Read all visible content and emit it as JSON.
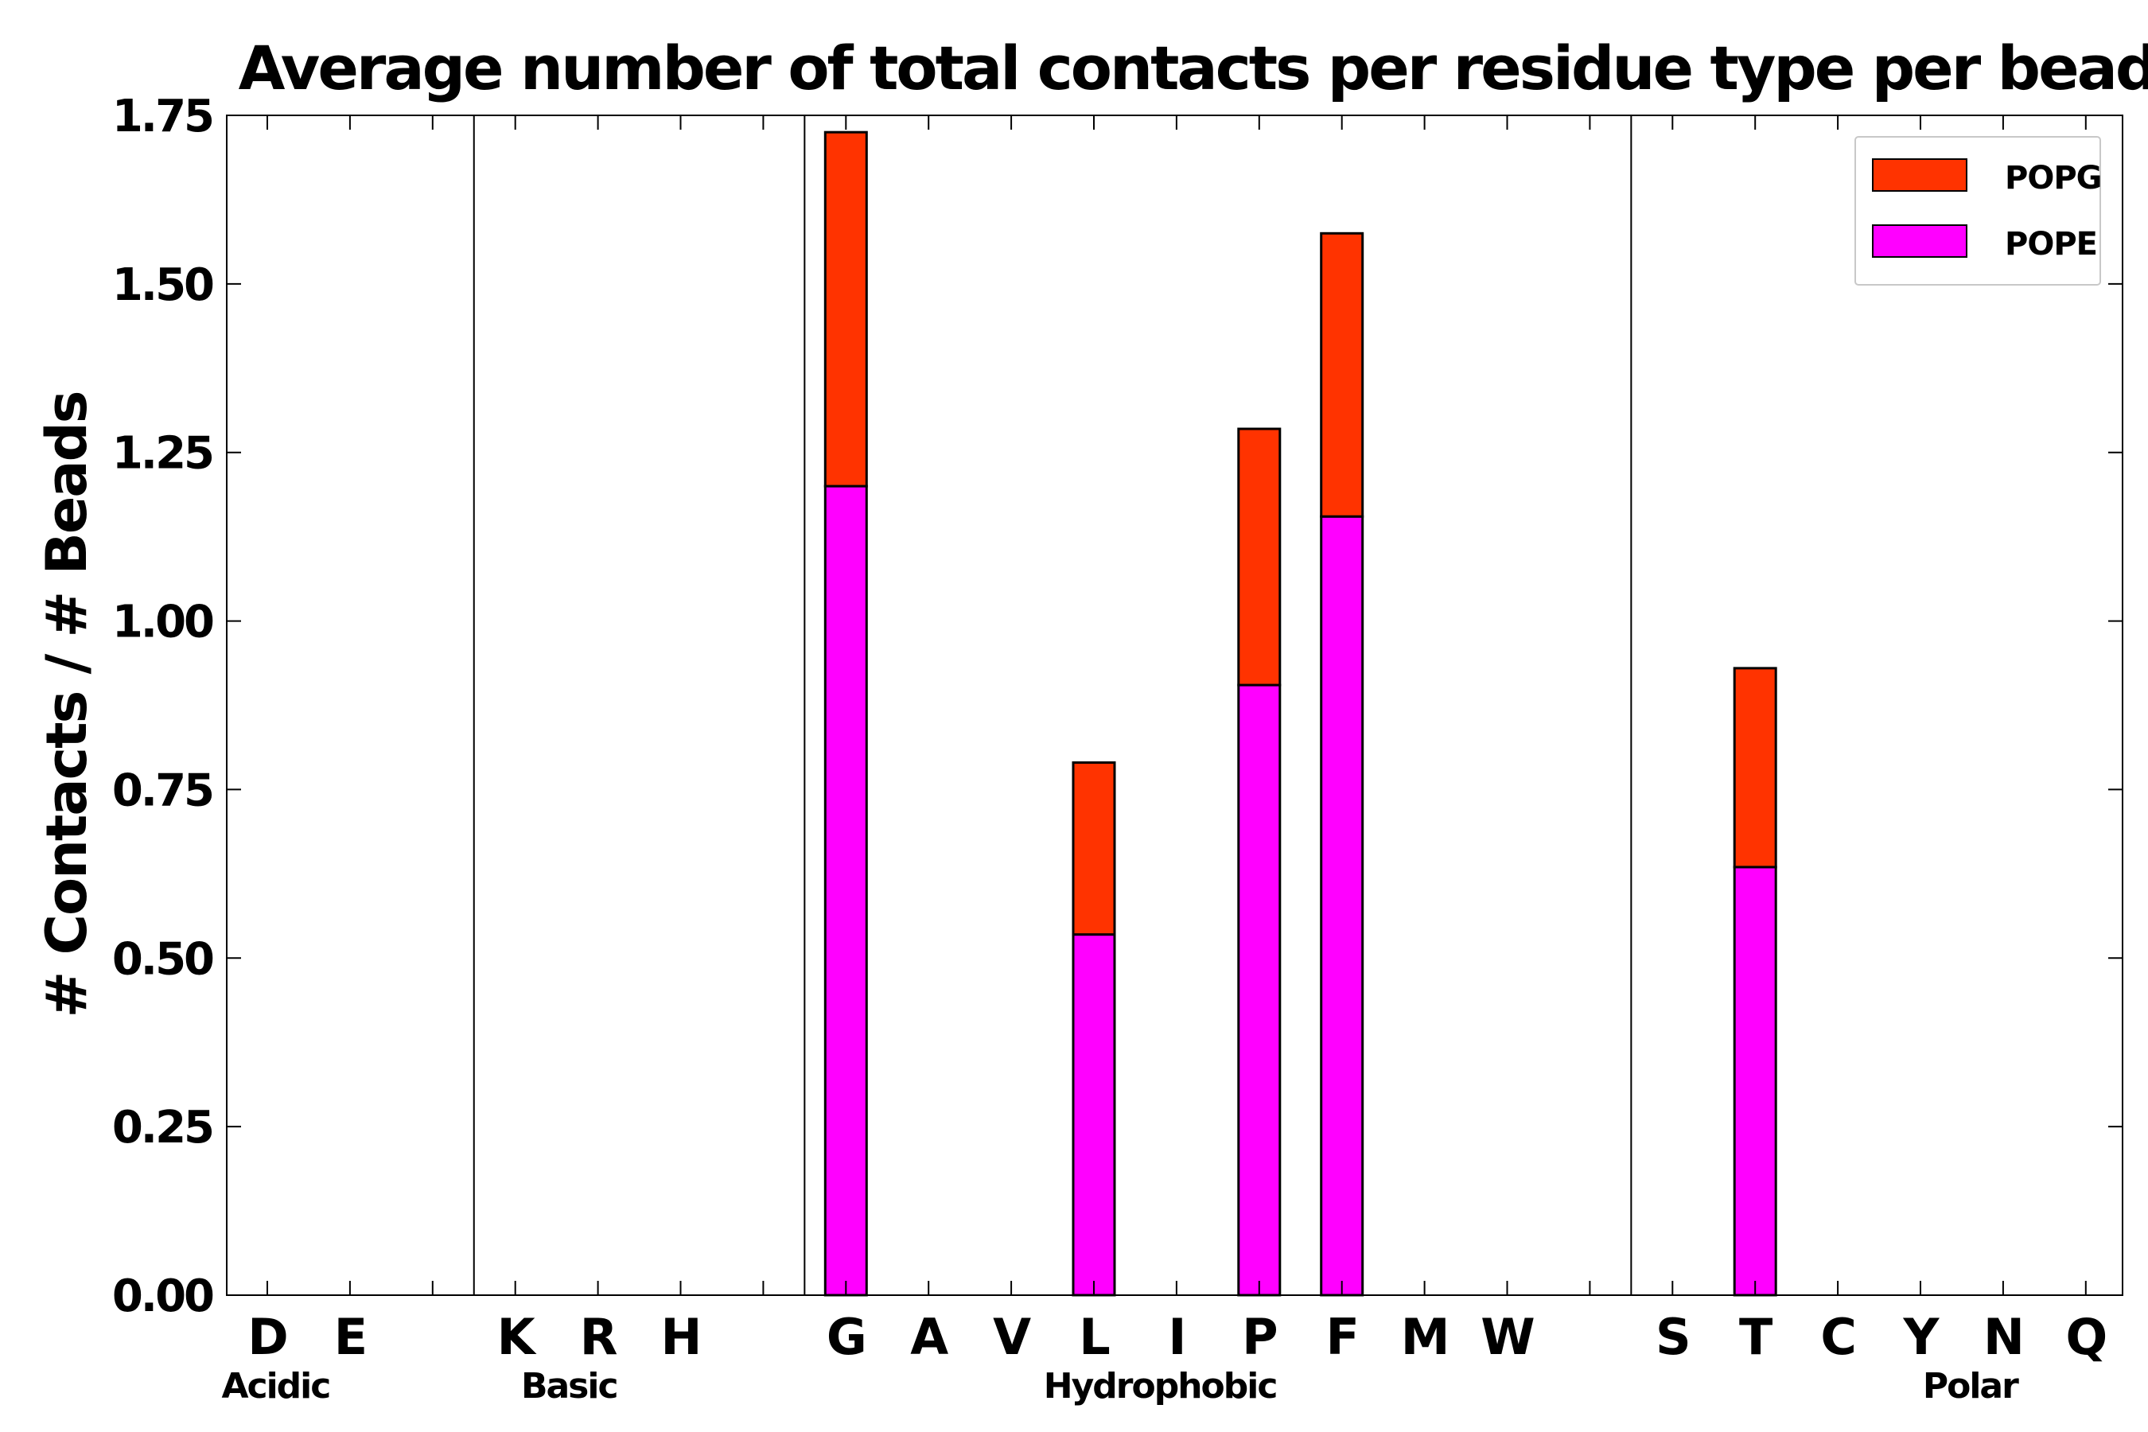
{
  "chart_data": {
    "type": "bar",
    "stacked": true,
    "title": "Average number of total contacts per residue type per bead",
    "xlabel": "",
    "ylabel": "# Contacts / # Beads",
    "ylim": [
      0,
      1.75
    ],
    "yticks": [
      "0.00",
      "0.25",
      "0.50",
      "0.75",
      "1.00",
      "1.25",
      "1.50",
      "1.75"
    ],
    "ytick_values": [
      0,
      0.25,
      0.5,
      0.75,
      1.0,
      1.25,
      1.5,
      1.75
    ],
    "grid": false,
    "legend_position": "top-right",
    "slots": [
      "D",
      "E",
      "",
      "K",
      "R",
      "H",
      "",
      "G",
      "A",
      "V",
      "L",
      "I",
      "P",
      "F",
      "M",
      "W",
      "",
      "S",
      "T",
      "C",
      "Y",
      "N",
      "Q"
    ],
    "separators_after_slot": [
      2,
      6,
      16
    ],
    "groups": [
      {
        "label": "Acidic",
        "center_slot": 0.1
      },
      {
        "label": "Basic",
        "center_slot": 3.65
      },
      {
        "label": "Hydrophobic",
        "center_slot": 10.8
      },
      {
        "label": "Polar",
        "center_slot": 20.6
      }
    ],
    "series": [
      {
        "name": "POPE",
        "color": "#ff00ff",
        "values": [
          0,
          0,
          0,
          0,
          0,
          0,
          0,
          1.2,
          0,
          0,
          0.535,
          0,
          0.905,
          1.155,
          0,
          0,
          0,
          0,
          0.635,
          0,
          0,
          0,
          0
        ]
      },
      {
        "name": "POPG",
        "color": "#ff3300",
        "values": [
          0,
          0,
          0,
          0,
          0,
          0,
          0,
          0.525,
          0,
          0,
          0.255,
          0,
          0.38,
          0.42,
          0,
          0,
          0,
          0,
          0.295,
          0,
          0,
          0,
          0
        ]
      }
    ],
    "legend_order": [
      "POPG",
      "POPE"
    ]
  }
}
